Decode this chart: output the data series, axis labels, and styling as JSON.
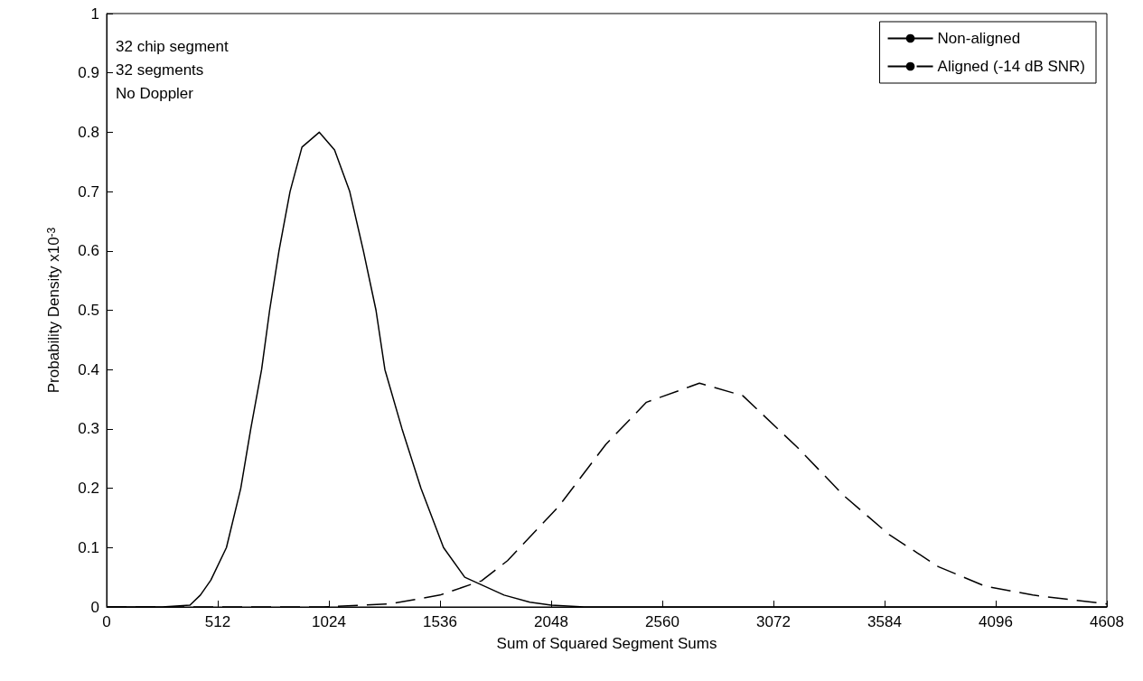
{
  "chart_data": {
    "type": "line",
    "xlabel": "Sum of Squared Segment Sums",
    "ylabel": "Probability Density x10$^{-3}$",
    "annotations": [
      "32 chip segment",
      "32 segments",
      "No Doppler"
    ],
    "xlim": [
      0,
      4608
    ],
    "xticks": [
      0,
      512,
      1024,
      1536,
      2048,
      2560,
      3072,
      3584,
      4096,
      4608
    ],
    "ylim": [
      0,
      1
    ],
    "yticks": [
      0,
      0.1,
      0.2,
      0.3,
      0.4,
      0.5,
      0.6,
      0.7,
      0.8,
      0.9,
      1
    ],
    "grid": false,
    "legend": "top right",
    "marker": "none",
    "series": [
      {
        "name": "Non-aligned",
        "color": "#000000",
        "line_style": "solid",
        "x": [
          0,
          256,
          384,
          432,
          480,
          552,
          618,
          664,
          714,
          751,
          794,
          845,
          900,
          980,
          1050,
          1120,
          1183,
          1241,
          1282,
          1361,
          1448,
          1552,
          1650,
          1831,
          1950,
          2048,
          2200,
          4608
        ],
        "values": [
          0,
          0,
          0.003,
          0.02,
          0.045,
          0.1,
          0.2,
          0.3,
          0.4,
          0.5,
          0.6,
          0.7,
          0.775,
          0.8,
          0.77,
          0.7,
          0.6,
          0.5,
          0.4,
          0.3,
          0.2,
          0.1,
          0.05,
          0.02,
          0.008,
          0.003,
          0,
          0
        ]
      },
      {
        "name": "Aligned (-14 dB SNR)",
        "color": "#000000",
        "line_style": "dashed",
        "x": [
          0,
          1000,
          1300,
          1536,
          1727,
          1847,
          2084,
          2300,
          2487,
          2731,
          2931,
          3182,
          3398,
          3605,
          3831,
          4047,
          4267,
          4608
        ],
        "values": [
          0,
          0,
          0.005,
          0.02,
          0.044,
          0.078,
          0.17,
          0.274,
          0.345,
          0.377,
          0.356,
          0.269,
          0.187,
          0.122,
          0.068,
          0.035,
          0.02,
          0.005
        ]
      }
    ]
  }
}
